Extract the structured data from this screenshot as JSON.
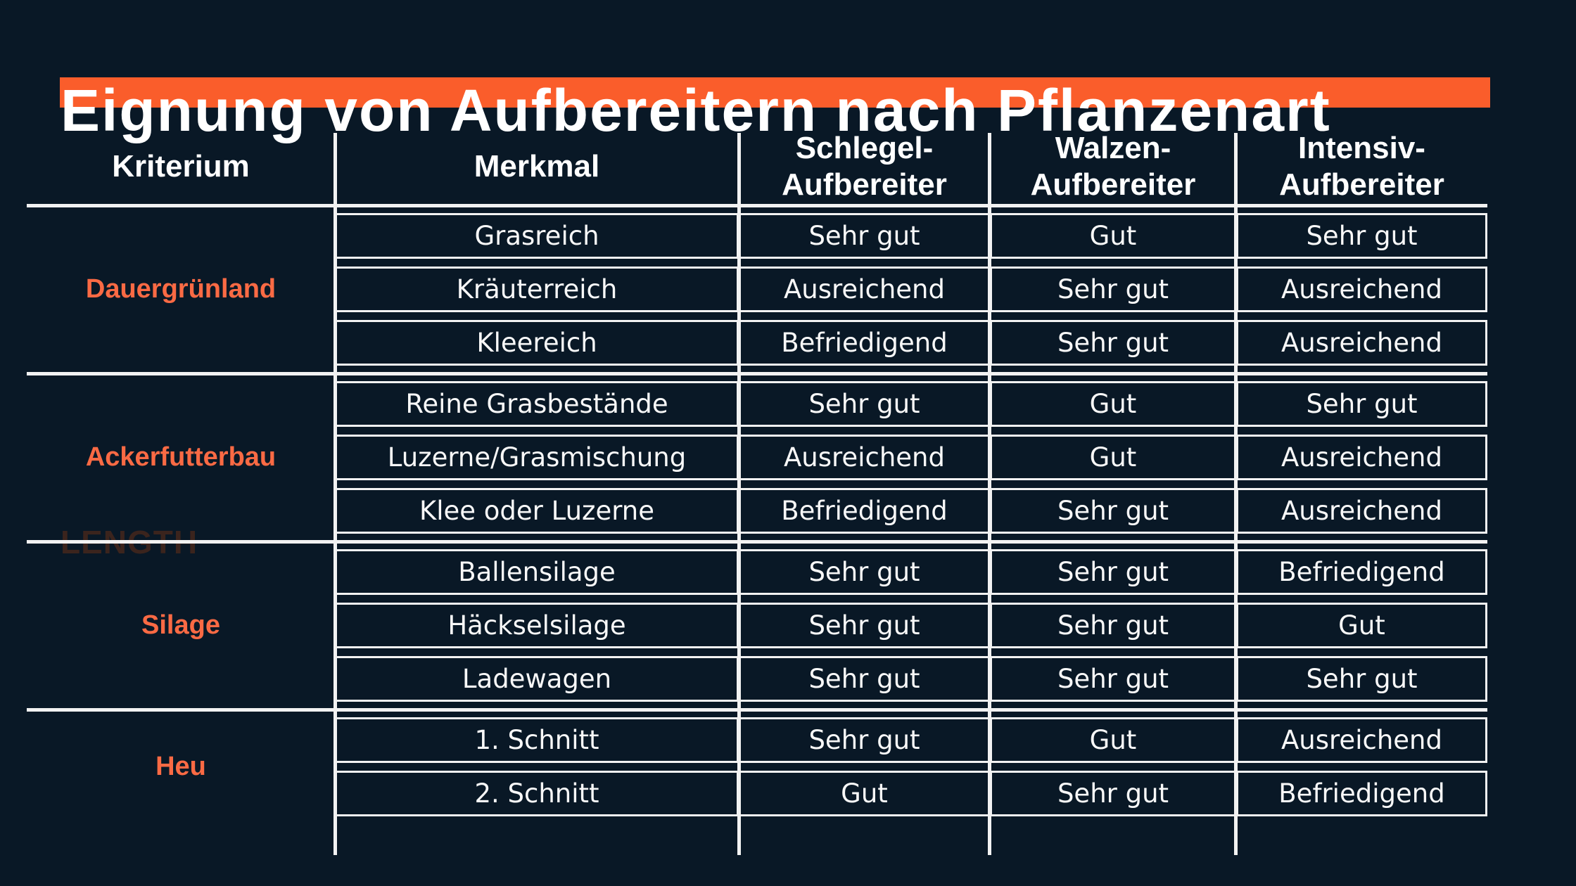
{
  "page": {
    "title": "Eignung von Aufbereitern nach Pflanzenart",
    "watermark": "LENGTH"
  },
  "colors": {
    "background": "#091826",
    "accent_orange_bar": "#FA5D2B",
    "label_orange": "#FA6A44",
    "line_white": "#F2F2F2",
    "watermark_brown": "#3B241D"
  },
  "table": {
    "columns": [
      "Kriterium",
      "Merkmal",
      "Schlegel-\nAufbereiter",
      "Walzen-\nAufbereiter",
      "Intensiv-\nAufbereiter"
    ],
    "groups": [
      {
        "label": "Dauergrünland",
        "rows": [
          {
            "merkmal": "Grasreich",
            "ratings": [
              "Sehr gut",
              "Gut",
              "Sehr gut"
            ]
          },
          {
            "merkmal": "Kräuterreich",
            "ratings": [
              "Ausreichend",
              "Sehr gut",
              "Ausreichend"
            ]
          },
          {
            "merkmal": "Kleereich",
            "ratings": [
              "Befriedigend",
              "Sehr gut",
              "Ausreichend"
            ]
          }
        ]
      },
      {
        "label": "Ackerfutterbau",
        "rows": [
          {
            "merkmal": "Reine Grasbestände",
            "ratings": [
              "Sehr gut",
              "Gut",
              "Sehr gut"
            ]
          },
          {
            "merkmal": "Luzerne/Grasmischung",
            "ratings": [
              "Ausreichend",
              "Gut",
              "Ausreichend"
            ]
          },
          {
            "merkmal": "Klee oder Luzerne",
            "ratings": [
              "Befriedigend",
              "Sehr gut",
              "Ausreichend"
            ]
          }
        ]
      },
      {
        "label": "Silage",
        "rows": [
          {
            "merkmal": "Ballensilage",
            "ratings": [
              "Sehr gut",
              "Sehr gut",
              "Befriedigend"
            ]
          },
          {
            "merkmal": "Häckselsilage",
            "ratings": [
              "Sehr gut",
              "Sehr gut",
              "Gut"
            ]
          },
          {
            "merkmal": "Ladewagen",
            "ratings": [
              "Sehr gut",
              "Sehr gut",
              "Sehr gut"
            ]
          }
        ]
      },
      {
        "label": "Heu",
        "rows": [
          {
            "merkmal": "1. Schnitt",
            "ratings": [
              "Sehr gut",
              "Gut",
              "Ausreichend"
            ]
          },
          {
            "merkmal": "2. Schnitt",
            "ratings": [
              "Gut",
              "Sehr gut",
              "Befriedigend"
            ]
          }
        ]
      }
    ]
  }
}
